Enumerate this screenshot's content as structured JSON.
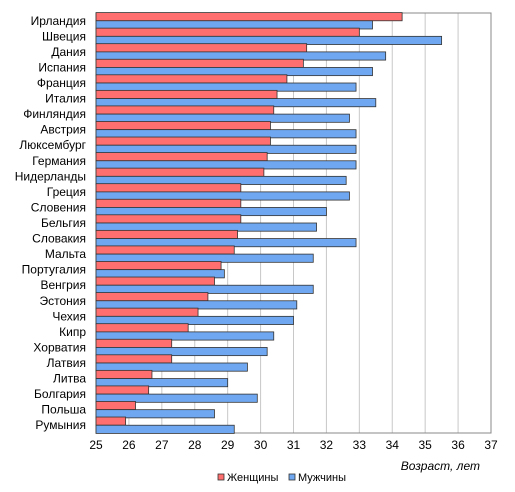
{
  "chart_data": {
    "type": "bar",
    "orientation": "horizontal",
    "title": "",
    "xlabel": "Возраст, лет",
    "ylabel": "",
    "xlim": [
      25,
      37
    ],
    "xticks": [
      25,
      26,
      27,
      28,
      29,
      30,
      31,
      32,
      33,
      34,
      35,
      36,
      37
    ],
    "grid": true,
    "legend_position": "bottom",
    "categories": [
      "Ирландия",
      "Швеция",
      "Дания",
      "Испания",
      "Франция",
      "Италия",
      "Финляндия",
      "Австрия",
      "Люксембург",
      "Германия",
      "Нидерланды",
      "Греция",
      "Словения",
      "Бельгия",
      "Словакия",
      "Мальта",
      "Португалия",
      "Венгрия",
      "Эстония",
      "Чехия",
      "Кипр",
      "Хорватия",
      "Латвия",
      "Литва",
      "Болгария",
      "Польша",
      "Румыния"
    ],
    "series": [
      {
        "name": "Женщины",
        "color": "#ff6f6f",
        "values": [
          34.3,
          33.0,
          31.4,
          31.3,
          30.8,
          30.5,
          30.4,
          30.3,
          30.3,
          30.2,
          30.1,
          29.4,
          29.4,
          29.4,
          29.3,
          29.2,
          28.8,
          28.6,
          28.4,
          28.1,
          27.8,
          27.3,
          27.3,
          26.7,
          26.6,
          26.2,
          25.9
        ]
      },
      {
        "name": "Мужчины",
        "color": "#6fa8f0",
        "values": [
          33.4,
          35.5,
          33.8,
          33.4,
          32.9,
          33.5,
          32.7,
          32.9,
          32.9,
          32.9,
          32.6,
          32.7,
          32.0,
          31.7,
          32.9,
          31.6,
          28.9,
          31.6,
          31.1,
          31.0,
          30.4,
          30.2,
          29.6,
          29.0,
          29.9,
          28.6,
          29.2
        ]
      }
    ]
  }
}
